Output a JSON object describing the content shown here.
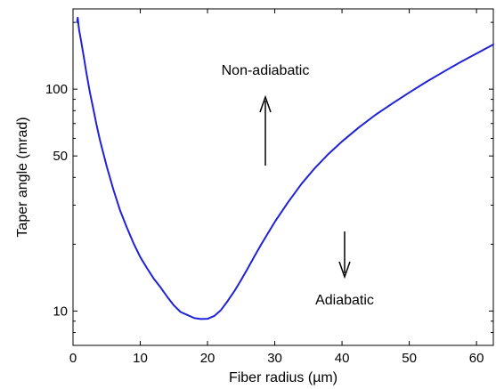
{
  "chart_data": {
    "type": "line",
    "title": "",
    "xlabel": "Fiber radius (µm)",
    "ylabel": "Taper angle (mrad)",
    "xlim": [
      0,
      62.5
    ],
    "ylim": [
      7,
      230
    ],
    "yscale": "log",
    "grid": false,
    "legend": "none",
    "x_ticks": [
      0,
      10,
      20,
      30,
      40,
      50,
      60
    ],
    "x_tick_labels": [
      "0",
      "10",
      "20",
      "30",
      "40",
      "50",
      "60"
    ],
    "y_ticks": [
      10,
      50,
      100
    ],
    "y_tick_labels": [
      "10",
      "50",
      "100"
    ],
    "series": [
      {
        "color": "#1f22d6",
        "x": [
          0.6,
          0.7,
          0.9,
          1.2,
          1.6,
          2,
          2.5,
          3,
          3.5,
          4,
          5,
          6,
          7,
          8,
          9,
          10,
          11,
          12,
          13,
          14,
          15,
          16,
          17,
          18,
          19,
          20,
          21,
          22,
          23,
          24,
          25,
          26,
          27,
          28,
          30,
          32,
          34,
          36,
          38,
          40,
          42.5,
          45,
          47.5,
          50,
          52.5,
          55,
          57.5,
          60,
          62.5
        ],
        "y": [
          200,
          210,
          185,
          165,
          140,
          118,
          97,
          82,
          69,
          59,
          45,
          35.3,
          28.4,
          23.8,
          20.2,
          17.5,
          15.6,
          14,
          12.8,
          11.6,
          10.6,
          9.9,
          9.6,
          9.3,
          9.2,
          9.22,
          9.5,
          10.1,
          11.1,
          12.3,
          13.8,
          15.6,
          17.7,
          20,
          25.2,
          31,
          37.5,
          44.2,
          51.1,
          58.1,
          67.2,
          76.7,
          86.2,
          96.6,
          107.7,
          119.3,
          131.8,
          144.8,
          159
        ]
      }
    ],
    "annotations": [
      {
        "text": "Non-adiabatic",
        "arrow": "up"
      },
      {
        "text": "Adiabatic",
        "arrow": "down"
      }
    ]
  }
}
